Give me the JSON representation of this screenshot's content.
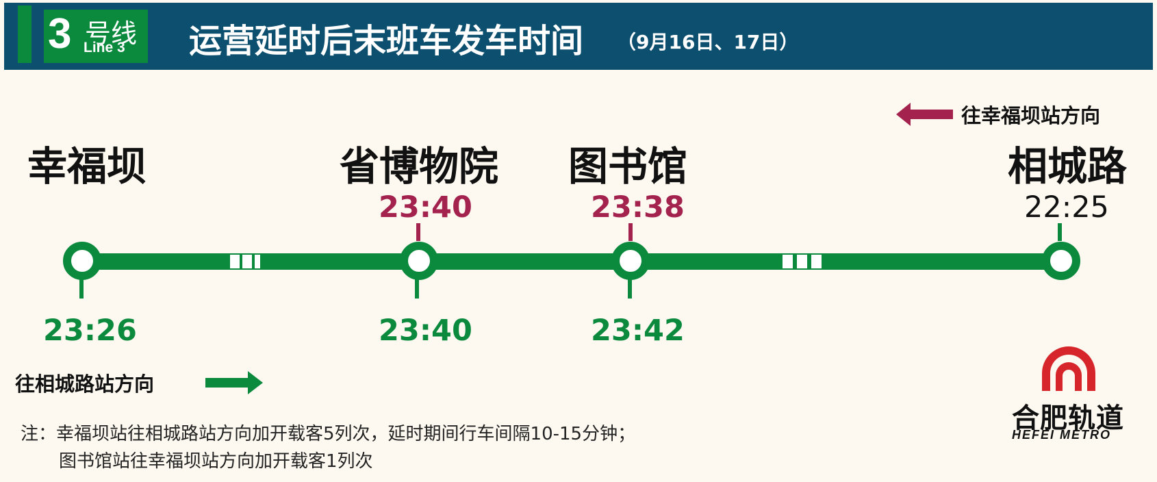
{
  "header": {
    "line_number": "3",
    "line_cn": "号线",
    "line_en": "Line 3",
    "title": "运营延时后末班车发车时间",
    "subtitle": "（9月16日、17日）"
  },
  "colors": {
    "line_green": "#0b8a3e",
    "header_blue": "#0c4f6f",
    "westbound_red": "#a3234e",
    "background": "#fdf9f0"
  },
  "stations": [
    {
      "name": "幸福坝",
      "time_to_xiangchenglu": "23:26",
      "time_to_xingfuba": ""
    },
    {
      "name": "省博物院",
      "time_to_xiangchenglu": "23:40",
      "time_to_xingfuba": "23:40"
    },
    {
      "name": "图书馆",
      "time_to_xiangchenglu": "23:42",
      "time_to_xingfuba": "23:38"
    },
    {
      "name": "相城路",
      "time_to_xiangchenglu": "",
      "time_to_xingfuba": "22:25"
    }
  ],
  "directions": {
    "to_xingfuba": "往幸福坝站方向",
    "to_xiangchenglu": "往相城路站方向"
  },
  "note": {
    "line1": "注：幸福坝站往相城路站方向加开载客5列次，延时期间行车间隔10-15分钟；",
    "line2": "图书馆站往幸福坝站方向加开载客1列次"
  },
  "logo": {
    "cn": "合肥轨道",
    "en": "HEFEI METRO"
  }
}
